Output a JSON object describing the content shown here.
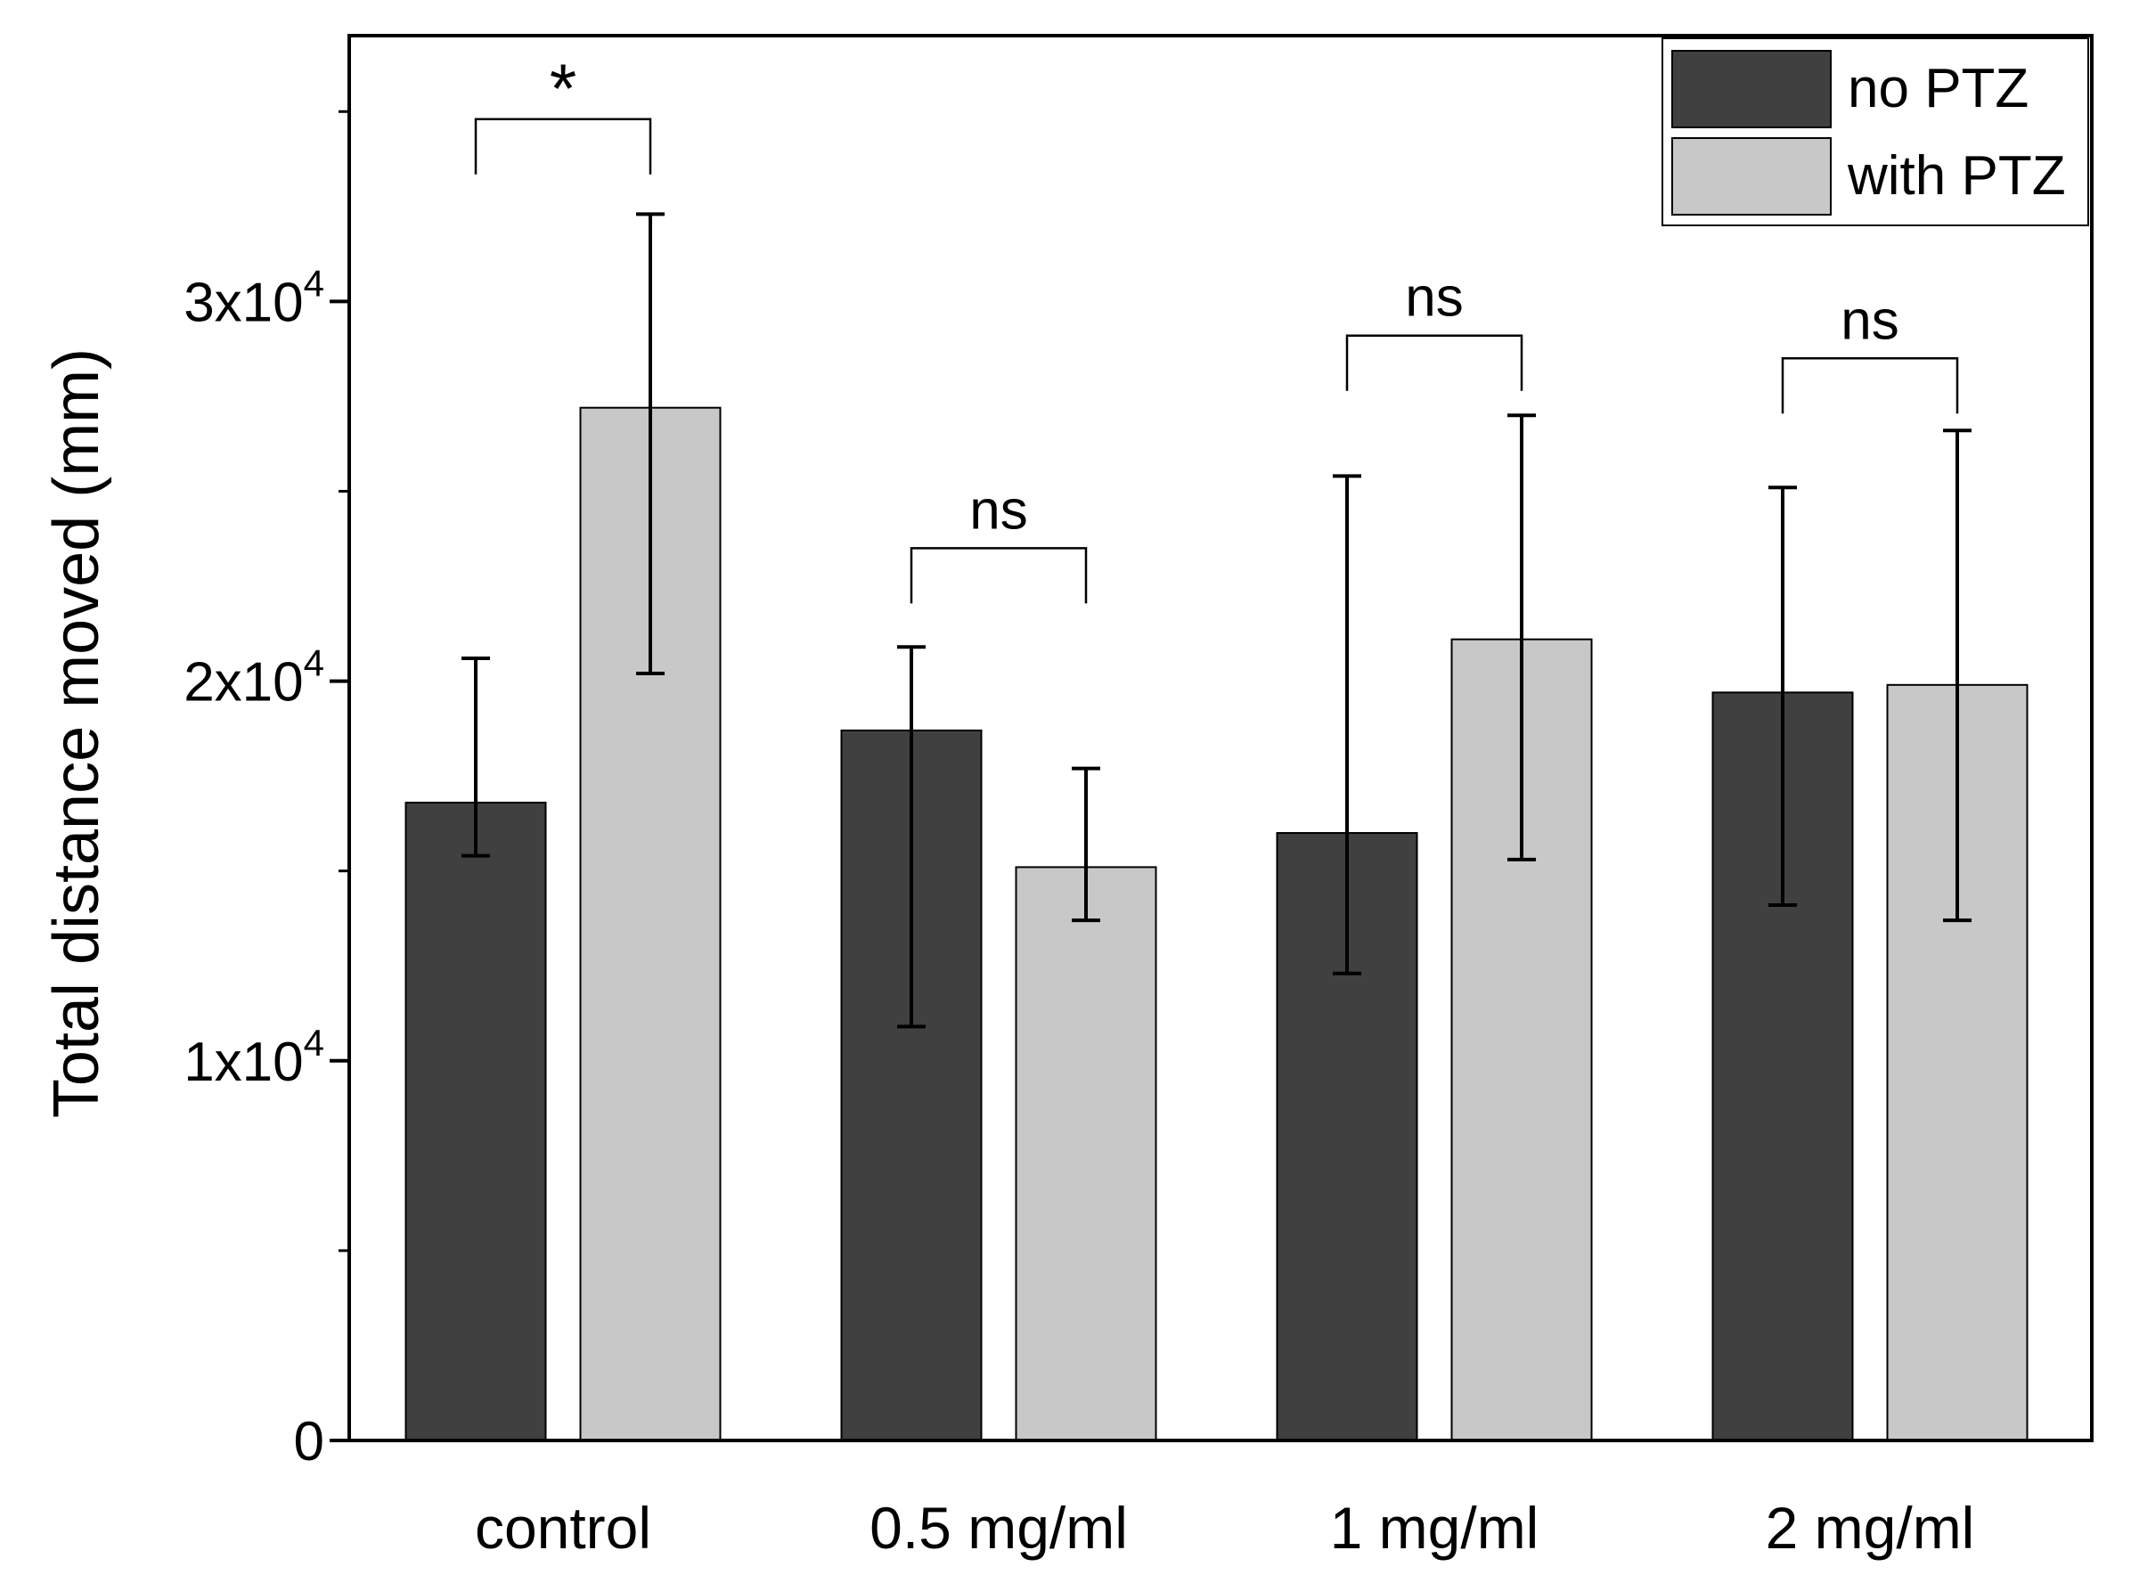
{
  "chart_data": {
    "type": "bar",
    "title": "",
    "xlabel": "",
    "ylabel": "Total distance moved (mm)",
    "ylim": [
      0,
      37000
    ],
    "yticks": [
      {
        "value": 0,
        "base": "0",
        "exp": ""
      },
      {
        "value": 10000,
        "base": "1x10",
        "exp": "4"
      },
      {
        "value": 20000,
        "base": "2x10",
        "exp": "4"
      },
      {
        "value": 30000,
        "base": "3x10",
        "exp": "4"
      }
    ],
    "yminor_ticks": [
      5000,
      15000,
      25000,
      35000
    ],
    "categories": [
      "control",
      "0.5 mg/ml",
      "1 mg/ml",
      "2 mg/ml"
    ],
    "series": [
      {
        "name": "no PTZ",
        "color": "#404040",
        "values": [
          16800,
          18700,
          16000,
          19700
        ],
        "err_low": [
          15400,
          10900,
          12300,
          14100
        ],
        "err_high": [
          20600,
          20900,
          25400,
          25100
        ]
      },
      {
        "name": "with PTZ",
        "color": "#c8c8c8",
        "values": [
          27200,
          15100,
          21100,
          19900
        ],
        "err_low": [
          20200,
          13700,
          15300,
          13700
        ],
        "err_high": [
          32300,
          17700,
          27000,
          26600
        ]
      }
    ],
    "significance": [
      {
        "category_index": 0,
        "label": "*",
        "y_bracket": 34800
      },
      {
        "category_index": 1,
        "label": "ns",
        "y_bracket": 23500
      },
      {
        "category_index": 2,
        "label": "ns",
        "y_bracket": 29100
      },
      {
        "category_index": 3,
        "label": "ns",
        "y_bracket": 28500
      }
    ],
    "legend": {
      "placement": "top-right"
    },
    "grid": false
  }
}
